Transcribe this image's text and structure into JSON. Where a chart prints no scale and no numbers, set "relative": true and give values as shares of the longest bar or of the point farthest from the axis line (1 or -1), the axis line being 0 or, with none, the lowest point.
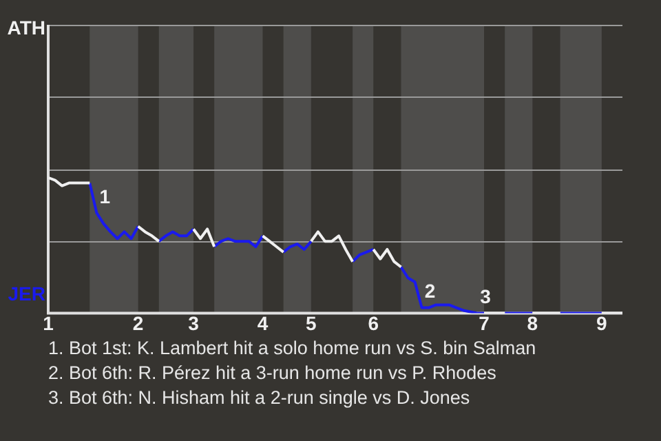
{
  "chart_data": {
    "type": "line",
    "relative": true,
    "categories": [
      "1",
      null,
      null,
      null,
      null,
      null,
      null,
      null,
      null,
      null,
      null,
      null,
      null,
      "2",
      null,
      null,
      null,
      null,
      null,
      null,
      null,
      "3",
      null,
      null,
      null,
      null,
      null,
      null,
      null,
      null,
      null,
      "4",
      null,
      null,
      null,
      null,
      null,
      null,
      "5",
      null,
      null,
      null,
      null,
      null,
      null,
      null,
      null,
      "6",
      null,
      null,
      null,
      null,
      null,
      null,
      null,
      null,
      null,
      null,
      null,
      null,
      null,
      null,
      null,
      "7",
      null,
      null,
      null,
      null,
      null,
      null,
      "8",
      null,
      null,
      null,
      null,
      null,
      null,
      null,
      null,
      null,
      "9",
      null,
      null,
      null
    ],
    "ref_lines": [
      {
        "axis": "y",
        "value": 0.53,
        "color": "#9a9a9a"
      },
      {
        "axis": "y",
        "value": 1.06,
        "color": "#9a9a9a"
      },
      {
        "axis": "y",
        "value": 1.6,
        "color": "#9a9a9a"
      }
    ],
    "series": [
      {
        "name": "ATH",
        "color": "#f0f0f0",
        "values": [
          1,
          0.98,
          0.94,
          0.96,
          0.96,
          0.96,
          0.96,
          null,
          null,
          null,
          null,
          null,
          null,
          0.64,
          0.6,
          0.57,
          0.53,
          null,
          null,
          null,
          null,
          0.62,
          0.55,
          0.62,
          0.49,
          null,
          null,
          null,
          null,
          null,
          null,
          0.57,
          0.53,
          0.49,
          0.45,
          null,
          null,
          null,
          0.53,
          0.6,
          0.53,
          0.53,
          0.57,
          0.47,
          0.38,
          null,
          null,
          0.47,
          0.4,
          0.47,
          0.38,
          0.34,
          null,
          null,
          null,
          null,
          null,
          null,
          null,
          null,
          null,
          null,
          null,
          0,
          0,
          0,
          0,
          null,
          null,
          null,
          0,
          0,
          0,
          0,
          0,
          null,
          null,
          null,
          null,
          null,
          0,
          0,
          0,
          0
        ]
      },
      {
        "name": "JER",
        "color": "#1a1aee",
        "values": [
          null,
          null,
          null,
          null,
          null,
          null,
          0.96,
          0.74,
          0.66,
          0.6,
          0.55,
          0.6,
          0.55,
          0.64,
          null,
          null,
          0.53,
          0.57,
          0.6,
          0.57,
          0.57,
          0.62,
          null,
          null,
          0.49,
          0.53,
          0.55,
          0.53,
          0.53,
          0.53,
          0.49,
          0.57,
          null,
          null,
          0.45,
          0.49,
          0.51,
          0.47,
          0.53,
          null,
          null,
          null,
          null,
          null,
          0.38,
          0.43,
          0.45,
          0.47,
          null,
          null,
          null,
          0.34,
          0.26,
          0.23,
          0.04,
          0.04,
          0.06,
          0.06,
          0.06,
          0.04,
          0.02,
          0.01,
          0,
          0,
          null,
          null,
          0,
          0,
          0,
          0,
          0,
          null,
          null,
          null,
          0,
          0,
          0,
          0,
          0,
          0,
          0,
          null,
          null,
          null
        ]
      }
    ],
    "annotations": [
      {
        "text": "1",
        "y": 0.74
      },
      {
        "text": "2",
        "y": 0.04
      },
      {
        "text": "3",
        "y": 0
      },
      "1. Bot 1st: K. Lambert hit a solo home run vs S. bin Salman",
      "2. Bot 6th: R. Pérez hit a 3-run home run vs P. Rhodes",
      "3. Bot 6th: N. Hisham hit a 2-run single vs D. Jones"
    ]
  }
}
